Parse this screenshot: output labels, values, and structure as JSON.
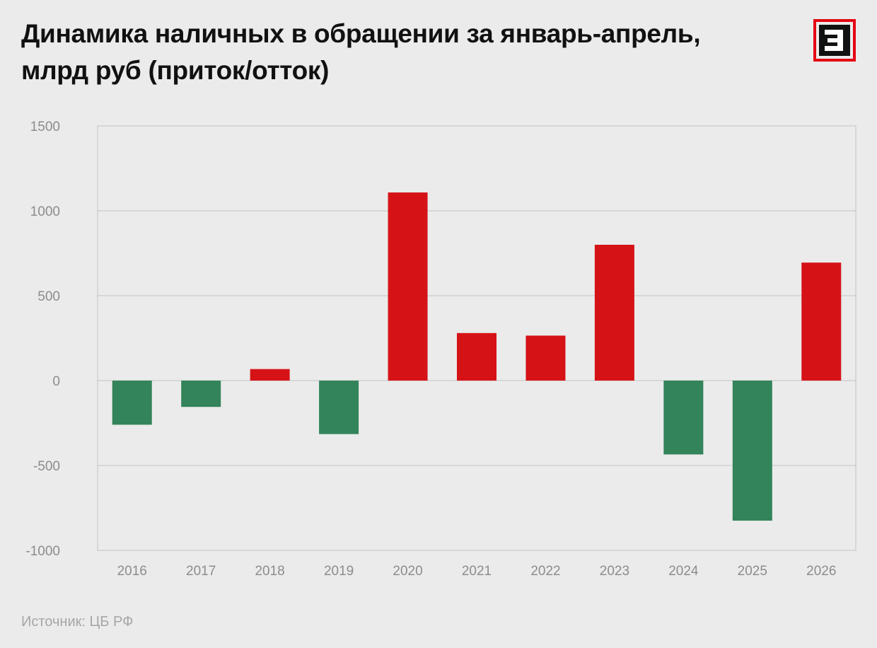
{
  "title_line1": "Динамика наличных в обращении за январь-апрель,",
  "title_line2": "млрд руб (приток/отток)",
  "logo_letter": "Э",
  "source": "Источник: ЦБ РФ",
  "colors": {
    "positive": "#d51317",
    "negative": "#33845a",
    "logo": "#e30613"
  },
  "chart_data": {
    "type": "bar",
    "title": "Динамика наличных в обращении за январь-апрель, млрд руб (приток/отток)",
    "categories": [
      "2016",
      "2017",
      "2018",
      "2019",
      "2020",
      "2021",
      "2022",
      "2023",
      "2024",
      "2025",
      "2026"
    ],
    "values": [
      -260,
      -155,
      68,
      -315,
      1108,
      280,
      265,
      800,
      -435,
      -825,
      695
    ],
    "ylim": [
      -1000,
      1500
    ],
    "yticks": [
      -1000,
      -500,
      0,
      500,
      1000,
      1500
    ],
    "ytick_labels": [
      "-1000",
      "-500",
      "0",
      "500",
      "1000",
      "1500"
    ],
    "grid": true,
    "legend": "none"
  }
}
